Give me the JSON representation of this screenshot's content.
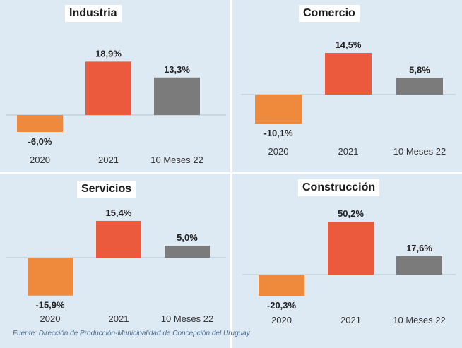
{
  "colors": {
    "orange": "#ef8a3c",
    "red": "#ec5a3d",
    "gray": "#7b7b7b",
    "panel_bg": "#dde9f3"
  },
  "chart_data": [
    {
      "type": "bar",
      "title": "Industria",
      "categories": [
        "2020",
        "2021",
        "10 Meses 22"
      ],
      "values": [
        -6.0,
        18.9,
        13.3
      ],
      "labels": [
        "-6,0%",
        "18,9%",
        "13,3%"
      ],
      "grid": false,
      "legend": "none"
    },
    {
      "type": "bar",
      "title": "Comercio",
      "categories": [
        "2020",
        "2021",
        "10 Meses 22"
      ],
      "values": [
        -10.1,
        14.5,
        5.8
      ],
      "labels": [
        "-10,1%",
        "14,5%",
        "5,8%"
      ],
      "grid": false,
      "legend": "none"
    },
    {
      "type": "bar",
      "title": "Servicios",
      "categories": [
        "2020",
        "2021",
        "10 Meses 22"
      ],
      "values": [
        -15.9,
        15.4,
        5.0
      ],
      "labels": [
        "-15,9%",
        "15,4%",
        "5,0%"
      ],
      "grid": false,
      "legend": "none"
    },
    {
      "type": "bar",
      "title": "Construcción",
      "categories": [
        "2020",
        "2021",
        "10 Meses 22"
      ],
      "values": [
        -20.3,
        50.2,
        17.6
      ],
      "labels": [
        "-20,3%",
        "50,2%",
        "17,6%"
      ],
      "grid": false,
      "legend": "none"
    }
  ],
  "source": "Fuente: Dirección de Producción-Municipalidad de Concepción del Uruguay"
}
